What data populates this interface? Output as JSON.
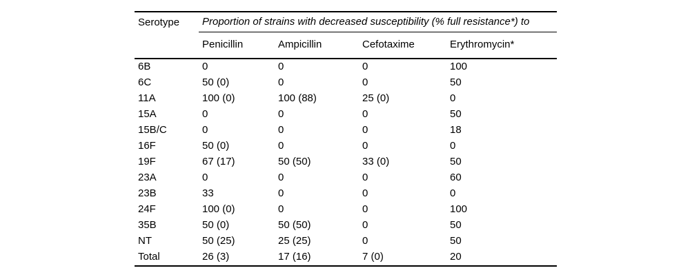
{
  "table": {
    "col1_header": "Serotype",
    "span_header": "Proportion of strains with decreased susceptibility (% full resistance*) to",
    "columns": [
      "Penicillin",
      "Ampicillin",
      "Cefotaxime",
      "Erythromycin*"
    ],
    "rows": [
      {
        "serotype": "6B",
        "values": [
          "0",
          "0",
          "0",
          "100"
        ]
      },
      {
        "serotype": "6C",
        "values": [
          "50 (0)",
          "0",
          "0",
          "50"
        ]
      },
      {
        "serotype": "11A",
        "values": [
          "100 (0)",
          "100 (88)",
          "25 (0)",
          "0"
        ]
      },
      {
        "serotype": "15A",
        "values": [
          "0",
          "0",
          "0",
          "50"
        ]
      },
      {
        "serotype": "15B/C",
        "values": [
          "0",
          "0",
          "0",
          "18"
        ]
      },
      {
        "serotype": "16F",
        "values": [
          "50 (0)",
          "0",
          "0",
          "0"
        ]
      },
      {
        "serotype": "19F",
        "values": [
          "67 (17)",
          "50 (50)",
          "33 (0)",
          "50"
        ]
      },
      {
        "serotype": "23A",
        "values": [
          "0",
          "0",
          "0",
          "60"
        ]
      },
      {
        "serotype": "23B",
        "values": [
          "33",
          "0",
          "0",
          "0"
        ]
      },
      {
        "serotype": "24F",
        "values": [
          "100 (0)",
          "0",
          "0",
          "100"
        ]
      },
      {
        "serotype": "35B",
        "values": [
          "50 (0)",
          "50 (50)",
          "0",
          "50"
        ]
      },
      {
        "serotype": "NT",
        "values": [
          "50 (25)",
          "25 (25)",
          "0",
          "50"
        ]
      },
      {
        "serotype": "Total",
        "values": [
          "26 (3)",
          "17 (16)",
          "7 (0)",
          "20"
        ]
      }
    ],
    "colors": {
      "text": "#000000",
      "rule": "#000000",
      "background": "#ffffff"
    }
  }
}
